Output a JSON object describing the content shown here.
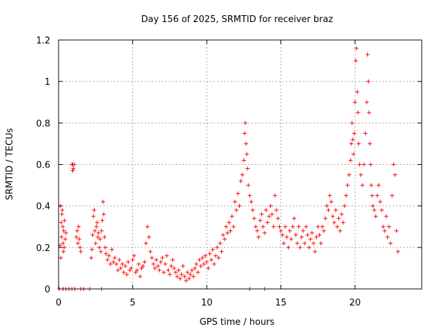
{
  "chart_data": {
    "type": "scatter",
    "title": "Day 156 of 2025, SRMTID for receiver braz",
    "xlabel": "GPS time / hours",
    "ylabel": "SRMTID / TECUs",
    "xlim": [
      0,
      24.5
    ],
    "ylim": [
      0,
      1.2
    ],
    "x_ticks": [
      0,
      5,
      10,
      15,
      20
    ],
    "x_tick_labels": [
      "0",
      "5",
      "10",
      "15",
      "20"
    ],
    "y_ticks": [
      0,
      0.2,
      0.4,
      0.6,
      0.8,
      1.0,
      1.2
    ],
    "y_tick_labels": [
      "0",
      "0.2",
      "0.4",
      "0.6",
      "0.8",
      "1",
      "1.2"
    ],
    "grid": true,
    "marker": "+",
    "color": "#ff0000",
    "series": [
      {
        "name": "SRMTID",
        "x": [
          0.1,
          0.12,
          0.15,
          0.18,
          0.2,
          0.22,
          0.25,
          0.28,
          0.3,
          0.33,
          0.35,
          0.38,
          0.4,
          0.45,
          0.5,
          0.9,
          0.95,
          1.0,
          1.05,
          0.95,
          1.2,
          1.25,
          1.3,
          1.35,
          1.4,
          1.45,
          1.5,
          2.2,
          2.25,
          2.3,
          2.35,
          2.4,
          2.45,
          2.5,
          2.55,
          2.6,
          2.65,
          2.7,
          2.75,
          2.8,
          2.85,
          2.9,
          2.95,
          3.0,
          3.05,
          3.1,
          3.15,
          3.2,
          3.3,
          3.4,
          3.5,
          3.6,
          3.7,
          3.8,
          3.9,
          4.0,
          4.1,
          4.2,
          4.3,
          4.4,
          4.5,
          4.6,
          4.7,
          4.8,
          4.9,
          5.0,
          5.1,
          5.2,
          5.3,
          5.4,
          5.5,
          5.6,
          5.7,
          5.8,
          5.9,
          6.0,
          6.1,
          6.2,
          6.3,
          6.4,
          6.5,
          6.6,
          6.7,
          6.8,
          6.9,
          7.0,
          7.1,
          7.2,
          7.3,
          7.4,
          7.5,
          7.6,
          7.7,
          7.8,
          7.9,
          8.0,
          8.1,
          8.2,
          8.3,
          8.4,
          8.5,
          8.6,
          8.7,
          8.8,
          8.9,
          9.0,
          9.1,
          9.2,
          9.3,
          9.4,
          9.5,
          9.6,
          9.7,
          9.8,
          9.9,
          10.0,
          10.1,
          10.2,
          10.3,
          10.4,
          10.5,
          10.6,
          10.7,
          10.8,
          10.9,
          11.0,
          11.1,
          11.2,
          11.3,
          11.4,
          11.5,
          11.6,
          11.7,
          11.8,
          11.9,
          12.0,
          12.1,
          12.2,
          12.3,
          12.4,
          12.5,
          12.55,
          12.6,
          12.65,
          12.7,
          12.75,
          12.8,
          12.9,
          13.0,
          13.1,
          13.2,
          13.3,
          13.4,
          13.5,
          13.6,
          13.7,
          13.8,
          13.9,
          14.0,
          14.1,
          14.2,
          14.3,
          14.4,
          14.5,
          14.6,
          14.7,
          14.8,
          14.9,
          15.0,
          15.1,
          15.2,
          15.3,
          15.4,
          15.5,
          15.6,
          15.7,
          15.8,
          15.9,
          16.0,
          16.1,
          16.2,
          16.3,
          16.4,
          16.5,
          16.6,
          16.7,
          16.8,
          16.9,
          17.0,
          17.1,
          17.2,
          17.3,
          17.4,
          17.5,
          17.6,
          17.7,
          17.8,
          17.9,
          18.0,
          18.1,
          18.2,
          18.3,
          18.4,
          18.5,
          18.6,
          18.7,
          18.8,
          18.9,
          19.0,
          19.1,
          19.2,
          19.3,
          19.4,
          19.5,
          19.6,
          19.7,
          19.75,
          19.8,
          19.85,
          19.9,
          19.95,
          20.0,
          20.05,
          20.1,
          20.15,
          20.2,
          20.25,
          20.3,
          20.4,
          20.5,
          20.6,
          20.7,
          20.8,
          20.85,
          20.9,
          20.95,
          21.0,
          21.05,
          21.1,
          21.15,
          21.2,
          21.3,
          21.4,
          21.5,
          21.6,
          21.7,
          21.8,
          21.9,
          22.0,
          22.1,
          22.2,
          22.3,
          22.4,
          22.5,
          22.6,
          22.7,
          22.8,
          22.9,
          0.05,
          0.3,
          0.5,
          0.7,
          0.9,
          1.1,
          1.5,
          1.7,
          2.1,
          2.9,
          13.9,
          12.9
        ],
        "y": [
          0.21,
          0.4,
          0.15,
          0.32,
          0.25,
          0.36,
          0.38,
          0.3,
          0.22,
          0.18,
          0.28,
          0.2,
          0.33,
          0.24,
          0.27,
          0.6,
          0.6,
          0.58,
          0.6,
          0.57,
          0.25,
          0.28,
          0.22,
          0.3,
          0.24,
          0.2,
          0.18,
          0.15,
          0.19,
          0.26,
          0.35,
          0.38,
          0.28,
          0.22,
          0.3,
          0.32,
          0.25,
          0.27,
          0.2,
          0.24,
          0.18,
          0.28,
          0.33,
          0.42,
          0.36,
          0.25,
          0.2,
          0.17,
          0.14,
          0.16,
          0.12,
          0.19,
          0.13,
          0.15,
          0.12,
          0.09,
          0.14,
          0.1,
          0.12,
          0.08,
          0.11,
          0.07,
          0.13,
          0.09,
          0.1,
          0.14,
          0.16,
          0.08,
          0.09,
          0.12,
          0.06,
          0.1,
          0.11,
          0.13,
          0.22,
          0.3,
          0.25,
          0.18,
          0.15,
          0.12,
          0.1,
          0.14,
          0.11,
          0.09,
          0.13,
          0.15,
          0.08,
          0.12,
          0.16,
          0.09,
          0.07,
          0.11,
          0.14,
          0.1,
          0.08,
          0.06,
          0.09,
          0.05,
          0.07,
          0.11,
          0.06,
          0.04,
          0.08,
          0.05,
          0.07,
          0.09,
          0.06,
          0.1,
          0.12,
          0.08,
          0.14,
          0.11,
          0.15,
          0.12,
          0.16,
          0.13,
          0.1,
          0.17,
          0.14,
          0.19,
          0.12,
          0.16,
          0.2,
          0.15,
          0.22,
          0.18,
          0.26,
          0.24,
          0.3,
          0.27,
          0.32,
          0.28,
          0.35,
          0.3,
          0.42,
          0.38,
          0.46,
          0.4,
          0.52,
          0.55,
          0.62,
          0.75,
          0.8,
          0.7,
          0.65,
          0.58,
          0.5,
          0.45,
          0.42,
          0.38,
          0.34,
          0.3,
          0.28,
          0.25,
          0.33,
          0.36,
          0.3,
          0.27,
          0.38,
          0.32,
          0.35,
          0.4,
          0.36,
          0.3,
          0.45,
          0.38,
          0.34,
          0.3,
          0.28,
          0.26,
          0.22,
          0.3,
          0.25,
          0.2,
          0.28,
          0.24,
          0.3,
          0.34,
          0.26,
          0.22,
          0.3,
          0.2,
          0.25,
          0.28,
          0.22,
          0.3,
          0.26,
          0.2,
          0.24,
          0.27,
          0.22,
          0.18,
          0.25,
          0.3,
          0.26,
          0.22,
          0.3,
          0.28,
          0.34,
          0.4,
          0.38,
          0.45,
          0.42,
          0.35,
          0.32,
          0.38,
          0.3,
          0.34,
          0.28,
          0.36,
          0.32,
          0.4,
          0.45,
          0.5,
          0.55,
          0.62,
          0.7,
          0.8,
          0.72,
          0.65,
          0.75,
          0.9,
          1.1,
          1.16,
          0.95,
          0.85,
          0.7,
          0.6,
          0.55,
          0.5,
          0.6,
          0.75,
          0.9,
          1.13,
          1.0,
          0.85,
          0.7,
          0.6,
          0.5,
          0.45,
          0.4,
          0.38,
          0.35,
          0.45,
          0.5,
          0.42,
          0.38,
          0.3,
          0.28,
          0.35,
          0.25,
          0.3,
          0.22,
          0.45,
          0.6,
          0.55,
          0.28,
          0.18,
          0.0,
          0.0,
          0.0,
          0.0,
          0.0,
          0.0,
          0.0,
          0.0,
          0.0,
          0.0,
          0.0,
          0.0
        ]
      }
    ]
  }
}
